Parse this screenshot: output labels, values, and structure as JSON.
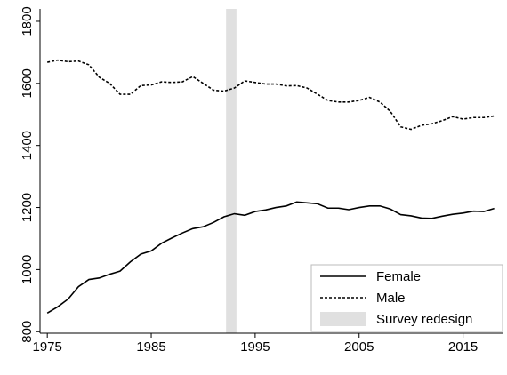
{
  "chart_data": {
    "type": "line",
    "x": [
      1975,
      1976,
      1977,
      1978,
      1979,
      1980,
      1981,
      1982,
      1983,
      1984,
      1985,
      1986,
      1987,
      1988,
      1989,
      1990,
      1991,
      1992,
      1993,
      1994,
      1995,
      1996,
      1997,
      1998,
      1999,
      2000,
      2001,
      2002,
      2003,
      2004,
      2005,
      2006,
      2007,
      2008,
      2009,
      2010,
      2011,
      2012,
      2013,
      2014,
      2015,
      2016,
      2017,
      2018
    ],
    "series": [
      {
        "name": "Female",
        "color": "#000000",
        "dash": "solid",
        "values": [
          860,
          880,
          905,
          945,
          968,
          973,
          985,
          995,
          1025,
          1050,
          1060,
          1085,
          1102,
          1118,
          1132,
          1138,
          1152,
          1170,
          1180,
          1175,
          1187,
          1192,
          1200,
          1205,
          1218,
          1215,
          1212,
          1198,
          1198,
          1193,
          1200,
          1205,
          1205,
          1195,
          1177,
          1173,
          1166,
          1165,
          1172,
          1178,
          1182,
          1188,
          1187,
          1197
        ]
      },
      {
        "name": "Male",
        "color": "#000000",
        "dash": "dashed",
        "values": [
          1668,
          1675,
          1670,
          1672,
          1660,
          1620,
          1600,
          1565,
          1565,
          1593,
          1595,
          1605,
          1603,
          1605,
          1622,
          1600,
          1578,
          1575,
          1585,
          1608,
          1603,
          1598,
          1598,
          1592,
          1593,
          1585,
          1565,
          1545,
          1540,
          1540,
          1545,
          1555,
          1540,
          1510,
          1460,
          1452,
          1465,
          1470,
          1480,
          1493,
          1485,
          1490,
          1490,
          1495
        ]
      }
    ],
    "shade": {
      "label": "Survey redesign",
      "x": [
        1992.2,
        1993.2
      ],
      "color": "#e0e0e0"
    },
    "xlim": [
      1974.3,
      2018.8
    ],
    "xticks": [
      1975,
      1985,
      1995,
      2005,
      2015
    ],
    "ylim": [
      795,
      1840
    ],
    "yticks": [
      800,
      1000,
      1200,
      1400,
      1600,
      1800
    ],
    "grid": false,
    "legend": "lower right"
  }
}
